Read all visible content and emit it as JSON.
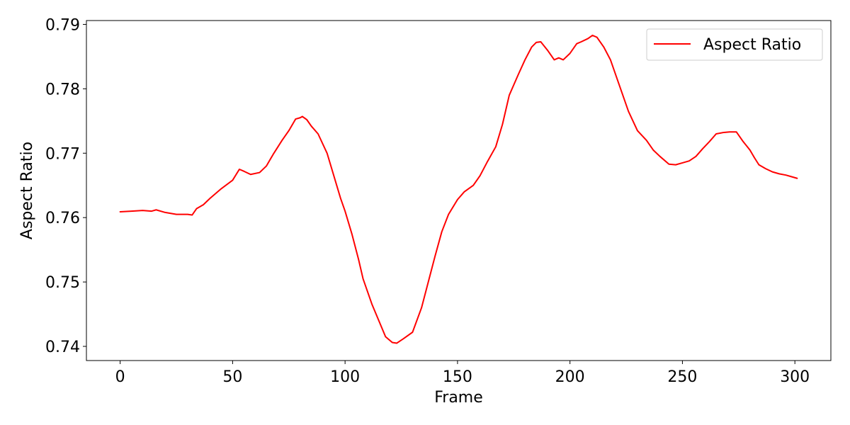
{
  "chart_data": {
    "type": "line",
    "title": "",
    "xlabel": "Frame",
    "ylabel": "Aspect Ratio",
    "xlim": [
      -15,
      316
    ],
    "ylim": [
      0.7378,
      0.7906
    ],
    "xticks": [
      0,
      50,
      100,
      150,
      200,
      250,
      300
    ],
    "xtick_labels": [
      "0",
      "50",
      "100",
      "150",
      "200",
      "250",
      "300"
    ],
    "yticks": [
      0.74,
      0.75,
      0.76,
      0.77,
      0.78,
      0.79
    ],
    "ytick_labels": [
      "0.74",
      "0.75",
      "0.76",
      "0.77",
      "0.78",
      "0.79"
    ],
    "grid": false,
    "legend_position": "top-right",
    "colors": {
      "series": "#ff0000",
      "axis": "#000000",
      "background": "#ffffff"
    },
    "series": [
      {
        "name": "Aspect Ratio",
        "x": [
          0,
          5,
          10,
          14,
          16,
          20,
          25,
          30,
          32,
          34,
          37,
          40,
          45,
          50,
          53,
          55,
          58,
          62,
          65,
          68,
          72,
          75,
          78,
          80,
          81,
          83,
          85,
          88,
          92,
          95,
          98,
          100,
          103,
          106,
          108,
          112,
          115,
          118,
          121,
          123,
          126,
          130,
          134,
          137,
          140,
          143,
          146,
          150,
          153,
          157,
          160,
          163,
          167,
          170,
          173,
          177,
          180,
          183,
          185,
          187,
          190,
          193,
          195,
          197,
          200,
          203,
          205,
          208,
          210,
          212,
          215,
          218,
          222,
          226,
          230,
          234,
          237,
          240,
          244,
          247,
          250,
          253,
          256,
          259,
          262,
          265,
          268,
          271,
          274,
          277,
          280,
          282,
          284,
          287,
          290,
          293,
          296,
          298,
          301
        ],
        "values": [
          0.7609,
          0.761,
          0.7611,
          0.761,
          0.7612,
          0.7608,
          0.7605,
          0.7605,
          0.7604,
          0.7614,
          0.762,
          0.763,
          0.7645,
          0.7658,
          0.7675,
          0.7672,
          0.7667,
          0.767,
          0.768,
          0.7698,
          0.772,
          0.7735,
          0.7753,
          0.7755,
          0.7757,
          0.7752,
          0.7742,
          0.773,
          0.77,
          0.7665,
          0.763,
          0.761,
          0.7575,
          0.7535,
          0.7505,
          0.7465,
          0.744,
          0.7415,
          0.7406,
          0.7405,
          0.7412,
          0.7422,
          0.746,
          0.75,
          0.754,
          0.7578,
          0.7605,
          0.7628,
          0.764,
          0.765,
          0.7665,
          0.7685,
          0.771,
          0.7745,
          0.779,
          0.7822,
          0.7845,
          0.7865,
          0.7872,
          0.7873,
          0.786,
          0.7845,
          0.7848,
          0.7845,
          0.7855,
          0.787,
          0.7873,
          0.7878,
          0.7883,
          0.788,
          0.7865,
          0.7845,
          0.7805,
          0.7765,
          0.7735,
          0.772,
          0.7705,
          0.7695,
          0.7683,
          0.7682,
          0.7685,
          0.7688,
          0.7695,
          0.7707,
          0.7718,
          0.773,
          0.7732,
          0.7733,
          0.7733,
          0.7718,
          0.7705,
          0.7693,
          0.7682,
          0.7676,
          0.7671,
          0.7668,
          0.7666,
          0.7664,
          0.7661
        ]
      }
    ]
  }
}
